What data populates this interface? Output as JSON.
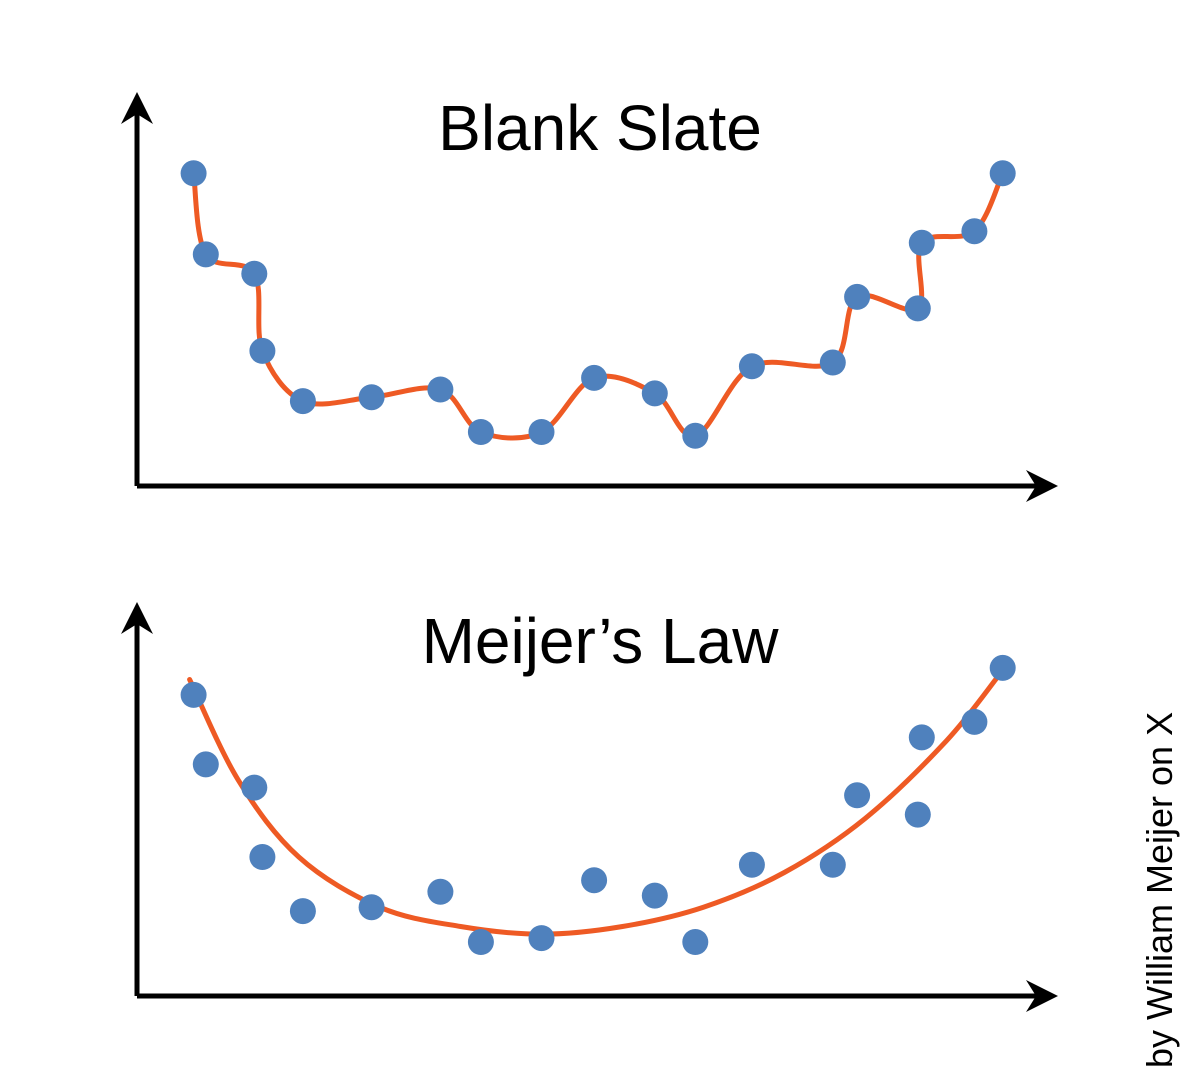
{
  "colors": {
    "point": "#4f81bd",
    "curve": "#ee5a24",
    "axis": "#000000"
  },
  "credit": "by William Meijer on X",
  "chart_data": [
    {
      "type": "scatter",
      "title": "Blank Slate",
      "xlabel": "",
      "ylabel": "",
      "xlim": [
        0,
        22
      ],
      "ylim": [
        0,
        10
      ],
      "grid": false,
      "points": [
        {
          "x": 1.4,
          "y": 8.1
        },
        {
          "x": 1.7,
          "y": 6.0
        },
        {
          "x": 2.9,
          "y": 5.5
        },
        {
          "x": 3.1,
          "y": 3.5
        },
        {
          "x": 4.1,
          "y": 2.2
        },
        {
          "x": 5.8,
          "y": 2.3
        },
        {
          "x": 7.5,
          "y": 2.5
        },
        {
          "x": 8.5,
          "y": 1.4
        },
        {
          "x": 10.0,
          "y": 1.4
        },
        {
          "x": 11.3,
          "y": 2.8
        },
        {
          "x": 12.8,
          "y": 2.4
        },
        {
          "x": 13.8,
          "y": 1.3
        },
        {
          "x": 15.2,
          "y": 3.1
        },
        {
          "x": 17.2,
          "y": 3.2
        },
        {
          "x": 17.8,
          "y": 4.9
        },
        {
          "x": 19.3,
          "y": 4.6
        },
        {
          "x": 19.4,
          "y": 6.3
        },
        {
          "x": 20.7,
          "y": 6.6
        },
        {
          "x": 21.4,
          "y": 8.1
        }
      ],
      "fit": "interpolating"
    },
    {
      "type": "scatter",
      "title": "Meijer’s Law",
      "xlabel": "",
      "ylabel": "",
      "xlim": [
        0,
        22
      ],
      "ylim": [
        0,
        10
      ],
      "grid": false,
      "points": [
        {
          "x": 1.4,
          "y": 7.8
        },
        {
          "x": 1.7,
          "y": 6.0
        },
        {
          "x": 2.9,
          "y": 5.4
        },
        {
          "x": 3.1,
          "y": 3.6
        },
        {
          "x": 4.1,
          "y": 2.2
        },
        {
          "x": 5.8,
          "y": 2.3
        },
        {
          "x": 7.5,
          "y": 2.7
        },
        {
          "x": 8.5,
          "y": 1.4
        },
        {
          "x": 10.0,
          "y": 1.5
        },
        {
          "x": 11.3,
          "y": 3.0
        },
        {
          "x": 12.8,
          "y": 2.6
        },
        {
          "x": 13.8,
          "y": 1.4
        },
        {
          "x": 15.2,
          "y": 3.4
        },
        {
          "x": 17.2,
          "y": 3.4
        },
        {
          "x": 17.8,
          "y": 5.2
        },
        {
          "x": 19.3,
          "y": 4.7
        },
        {
          "x": 19.4,
          "y": 6.7
        },
        {
          "x": 20.7,
          "y": 7.1
        },
        {
          "x": 21.4,
          "y": 8.5
        }
      ],
      "fit": "smooth U-shaped trend",
      "fit_curve": [
        {
          "x": 1.3,
          "y": 8.2
        },
        {
          "x": 2.5,
          "y": 5.6
        },
        {
          "x": 4.0,
          "y": 3.6
        },
        {
          "x": 6.0,
          "y": 2.3
        },
        {
          "x": 8.0,
          "y": 1.8
        },
        {
          "x": 10.0,
          "y": 1.6
        },
        {
          "x": 12.0,
          "y": 1.8
        },
        {
          "x": 14.0,
          "y": 2.3
        },
        {
          "x": 16.0,
          "y": 3.2
        },
        {
          "x": 18.0,
          "y": 4.6
        },
        {
          "x": 20.0,
          "y": 6.6
        },
        {
          "x": 21.3,
          "y": 8.3
        }
      ]
    }
  ]
}
